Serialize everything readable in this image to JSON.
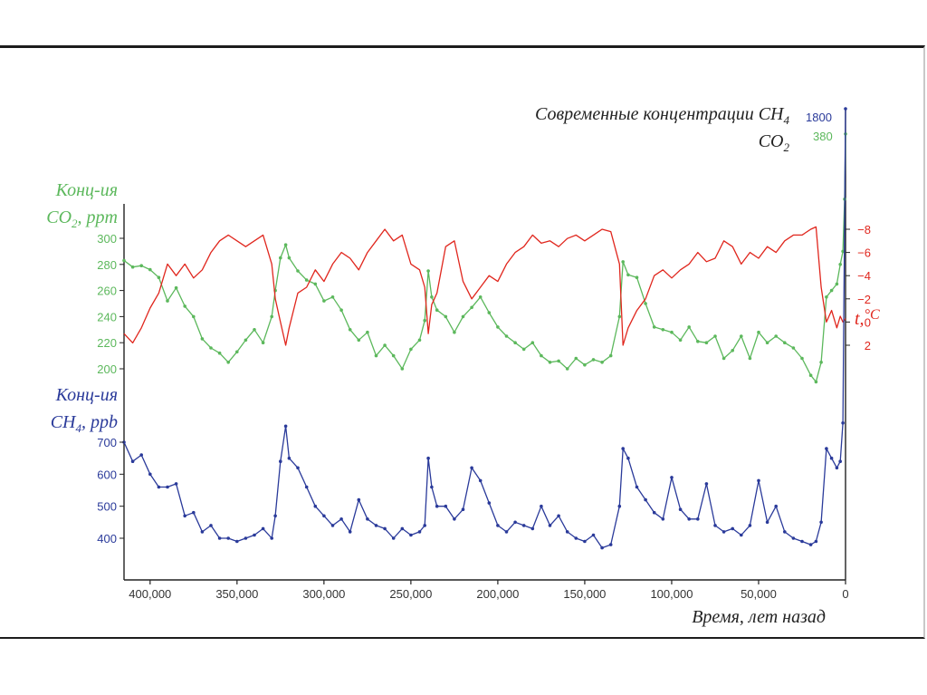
{
  "chart_data": {
    "type": "line",
    "modern_title": "Современные концентрации CH",
    "modern_title_sub": "4",
    "modern_co2": "CO",
    "modern_co2_sub": "2",
    "modern_ch4_value": "1800",
    "modern_co2_value": "380",
    "xlabel": "Время, лет назад",
    "xlim": [
      415000,
      0
    ],
    "x_ticks": [
      "400,000",
      "350,000",
      "300,000",
      "250,000",
      "200,000",
      "150,000",
      "100,000",
      "50,000",
      "0"
    ],
    "co2_axis": {
      "label_line1": "Конц-ия",
      "label_line2_main": "CO",
      "label_line2_sub": "2",
      "label_line2_unit": ", ppm",
      "ticks": [
        "300",
        "280",
        "260",
        "240",
        "220",
        "200"
      ],
      "ylim": [
        200,
        300
      ]
    },
    "ch4_axis": {
      "label_line1": "Конц-ия",
      "label_line2_main": "CH",
      "label_line2_sub": "4",
      "label_line2_unit": ", ppb",
      "ticks": [
        "700",
        "600",
        "500",
        "400"
      ],
      "ylim": [
        400,
        700
      ]
    },
    "temp_axis": {
      "label_main": "t,",
      "label_unit": "°C",
      "ticks": [
        "2",
        "0",
        "−2",
        "−4",
        "−6",
        "−8"
      ],
      "ylim": [
        -8,
        2
      ]
    },
    "colors": {
      "co2": "#5cb85c",
      "temp": "#e0261d",
      "ch4": "#2a3a9a",
      "axis": "#222222"
    },
    "series": [
      {
        "id": "co2",
        "x": [
          415000,
          410000,
          405000,
          400000,
          395000,
          390000,
          385000,
          380000,
          375000,
          370000,
          365000,
          360000,
          355000,
          350000,
          345000,
          340000,
          335000,
          330000,
          328000,
          325000,
          322000,
          320000,
          315000,
          310000,
          305000,
          300000,
          295000,
          290000,
          285000,
          280000,
          275000,
          270000,
          265000,
          260000,
          255000,
          250000,
          245000,
          242000,
          240000,
          238000,
          235000,
          230000,
          225000,
          220000,
          215000,
          210000,
          205000,
          200000,
          195000,
          190000,
          185000,
          180000,
          175000,
          170000,
          165000,
          160000,
          155000,
          150000,
          145000,
          140000,
          135000,
          130000,
          128000,
          125000,
          120000,
          115000,
          110000,
          105000,
          100000,
          95000,
          90000,
          85000,
          80000,
          75000,
          70000,
          65000,
          60000,
          55000,
          50000,
          45000,
          40000,
          35000,
          30000,
          25000,
          20000,
          17000,
          14000,
          11000,
          8000,
          5000,
          3000,
          1500,
          500,
          0
        ],
        "values": [
          283,
          278,
          279,
          276,
          270,
          252,
          262,
          248,
          240,
          223,
          216,
          212,
          205,
          213,
          222,
          230,
          220,
          240,
          260,
          285,
          295,
          285,
          275,
          268,
          265,
          252,
          255,
          245,
          230,
          222,
          228,
          210,
          218,
          210,
          200,
          215,
          222,
          237,
          275,
          255,
          245,
          240,
          228,
          240,
          247,
          255,
          243,
          232,
          225,
          220,
          215,
          220,
          210,
          205,
          206,
          200,
          208,
          203,
          207,
          205,
          210,
          240,
          282,
          272,
          270,
          250,
          232,
          230,
          228,
          222,
          232,
          221,
          220,
          225,
          208,
          214,
          225,
          208,
          228,
          220,
          225,
          220,
          216,
          208,
          195,
          190,
          205,
          255,
          260,
          265,
          280,
          290,
          330,
          380
        ]
      },
      {
        "id": "temp",
        "x": [
          415000,
          410000,
          405000,
          400000,
          395000,
          390000,
          385000,
          380000,
          375000,
          370000,
          365000,
          360000,
          355000,
          350000,
          345000,
          340000,
          335000,
          330000,
          328000,
          325000,
          322000,
          320000,
          315000,
          310000,
          305000,
          300000,
          295000,
          290000,
          285000,
          280000,
          275000,
          270000,
          265000,
          260000,
          255000,
          250000,
          245000,
          242000,
          240000,
          238000,
          235000,
          230000,
          225000,
          220000,
          215000,
          210000,
          205000,
          200000,
          195000,
          190000,
          185000,
          180000,
          175000,
          170000,
          165000,
          160000,
          155000,
          150000,
          145000,
          140000,
          135000,
          130000,
          128000,
          125000,
          120000,
          115000,
          110000,
          105000,
          100000,
          95000,
          90000,
          85000,
          80000,
          75000,
          70000,
          65000,
          60000,
          55000,
          50000,
          45000,
          40000,
          35000,
          30000,
          25000,
          20000,
          17000,
          14000,
          11000,
          8000,
          5000,
          3000,
          1500,
          0
        ],
        "values": [
          1.0,
          1.8,
          0.5,
          -1.2,
          -2.5,
          -5.0,
          -4.0,
          -5.0,
          -3.8,
          -4.5,
          -6.0,
          -7.0,
          -7.5,
          -7.0,
          -6.5,
          -7.0,
          -7.5,
          -5.0,
          -2.0,
          0.0,
          2.0,
          0.5,
          -2.5,
          -3.0,
          -4.5,
          -3.5,
          -5.0,
          -6.0,
          -5.5,
          -4.5,
          -6.0,
          -7.0,
          -8.0,
          -7.0,
          -7.5,
          -5.0,
          -4.5,
          -3.0,
          1.0,
          -1.5,
          -2.5,
          -6.5,
          -7.0,
          -3.5,
          -2.0,
          -3.0,
          -4.0,
          -3.5,
          -5.0,
          -6.0,
          -6.5,
          -7.5,
          -6.8,
          -7.0,
          -6.5,
          -7.2,
          -7.5,
          -7.0,
          -7.5,
          -8.0,
          -7.8,
          -5.0,
          2.0,
          0.5,
          -1.0,
          -2.0,
          -4.0,
          -4.5,
          -3.8,
          -4.5,
          -5.0,
          -6.0,
          -5.2,
          -5.5,
          -7.0,
          -6.5,
          -5.0,
          -6.0,
          -5.5,
          -6.5,
          -6.0,
          -7.0,
          -7.5,
          -7.5,
          -8.0,
          -8.2,
          -3.0,
          0.0,
          -1.0,
          0.5,
          -0.5,
          0.0,
          -0.3
        ]
      },
      {
        "id": "ch4",
        "x": [
          415000,
          410000,
          405000,
          400000,
          395000,
          390000,
          385000,
          380000,
          375000,
          370000,
          365000,
          360000,
          355000,
          350000,
          345000,
          340000,
          335000,
          330000,
          328000,
          325000,
          322000,
          320000,
          315000,
          310000,
          305000,
          300000,
          295000,
          290000,
          285000,
          280000,
          275000,
          270000,
          265000,
          260000,
          255000,
          250000,
          245000,
          242000,
          240000,
          238000,
          235000,
          230000,
          225000,
          220000,
          215000,
          210000,
          205000,
          200000,
          195000,
          190000,
          185000,
          180000,
          175000,
          170000,
          165000,
          160000,
          155000,
          150000,
          145000,
          140000,
          135000,
          130000,
          128000,
          125000,
          120000,
          115000,
          110000,
          105000,
          100000,
          95000,
          90000,
          85000,
          80000,
          75000,
          70000,
          65000,
          60000,
          55000,
          50000,
          45000,
          40000,
          35000,
          30000,
          25000,
          20000,
          17000,
          14000,
          11000,
          8000,
          5000,
          3000,
          1500,
          0
        ],
        "values": [
          700,
          640,
          660,
          600,
          560,
          560,
          570,
          470,
          480,
          420,
          440,
          400,
          400,
          390,
          400,
          410,
          430,
          400,
          470,
          640,
          750,
          650,
          620,
          560,
          500,
          470,
          440,
          460,
          420,
          520,
          460,
          440,
          430,
          400,
          430,
          410,
          420,
          440,
          650,
          560,
          500,
          500,
          460,
          490,
          620,
          580,
          510,
          440,
          420,
          450,
          440,
          430,
          500,
          440,
          470,
          420,
          400,
          390,
          410,
          370,
          380,
          500,
          680,
          650,
          560,
          520,
          480,
          460,
          590,
          490,
          460,
          460,
          570,
          440,
          420,
          430,
          410,
          440,
          580,
          450,
          500,
          420,
          400,
          390,
          380,
          390,
          450,
          680,
          650,
          620,
          640,
          760,
          1800
        ]
      }
    ]
  }
}
